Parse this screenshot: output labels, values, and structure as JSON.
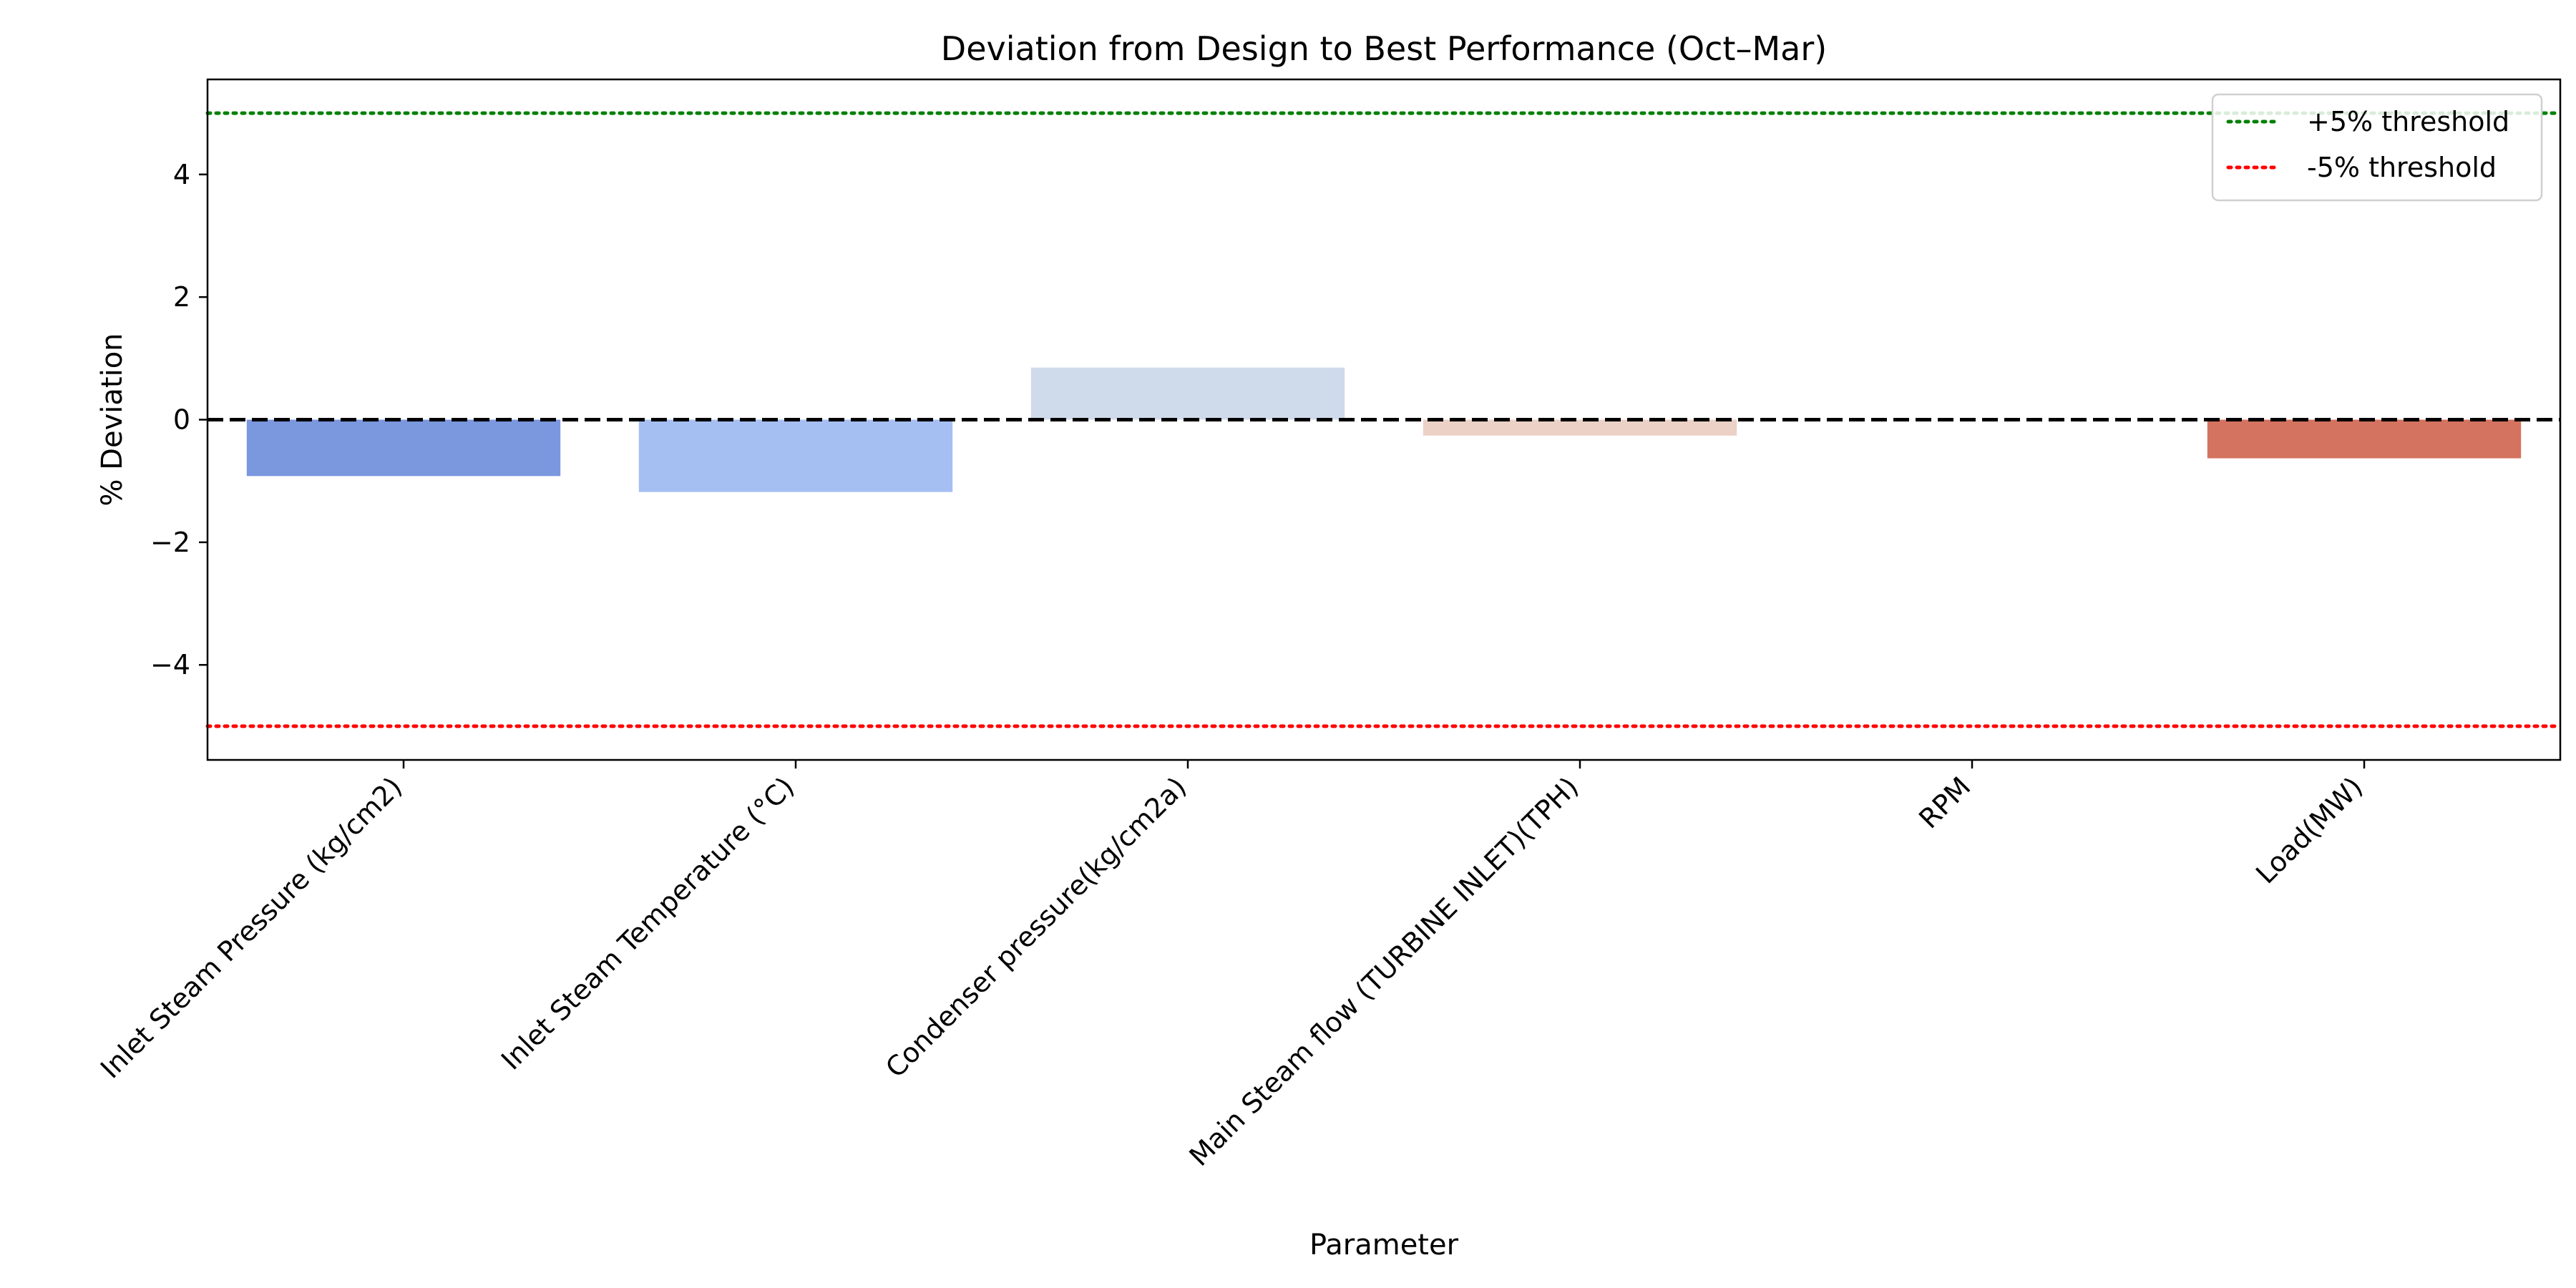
{
  "chart_data": {
    "type": "bar",
    "title": "Deviation from Design to Best Performance (Oct–Mar)",
    "xlabel": "Parameter",
    "ylabel": "% Deviation",
    "ylim": [
      -5.55,
      5.55
    ],
    "yticks": [
      -4,
      -2,
      0,
      2,
      4
    ],
    "ytick_labels": [
      "−4",
      "−2",
      "0",
      "2",
      "4"
    ],
    "grid": false,
    "legend_position": "top-right",
    "categories": [
      "Inlet Steam Pressure (kg/cm2)",
      "Inlet Steam Temperature (°C)",
      "Condenser pressure(kg/cm2a)",
      "Main Steam flow (TURBINE INLET)(TPH)",
      "RPM",
      "Load(MW)"
    ],
    "values": [
      -0.92,
      -1.18,
      0.85,
      -0.26,
      0.0,
      -0.63
    ],
    "colors": [
      "#7b97de",
      "#a6bff3",
      "#cfdaeb",
      "#ebd1c6",
      "#e8a88c",
      "#d4735f"
    ],
    "reference_lines": [
      {
        "value": 0,
        "color": "#000000",
        "style": "dashed",
        "label": ""
      },
      {
        "value": 5,
        "color": "#008000",
        "style": "dotted",
        "label": "+5% threshold"
      },
      {
        "value": -5,
        "color": "#ff0000",
        "style": "dotted",
        "label": "-5% threshold"
      }
    ]
  }
}
